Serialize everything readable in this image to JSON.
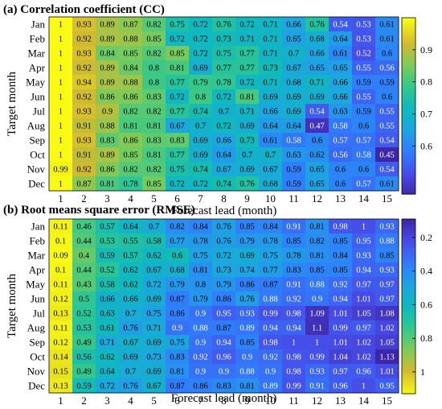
{
  "chart_data": [
    {
      "type": "heatmap",
      "title": "(a) Correlation coefficient (CC)",
      "xlabel": "Forecast lead (month)",
      "ylabel": "Target month",
      "x": [
        "1",
        "2",
        "3",
        "4",
        "5",
        "6",
        "7",
        "8",
        "9",
        "10",
        "11",
        "12",
        "13",
        "14",
        "15"
      ],
      "y": [
        "Jan",
        "Feb",
        "Mar",
        "Apr",
        "May",
        "Jun",
        "Jul",
        "Aug",
        "Sep",
        "Oct",
        "Nov",
        "Dec"
      ],
      "colorscale": "parula_reversed",
      "vmin": 0.45,
      "vmax": 1.0,
      "colorbar_ticks": [
        0.6,
        0.7,
        0.8,
        0.9
      ],
      "values": [
        [
          "1",
          "0.93",
          "0.89",
          "0.87",
          "0.82",
          "0.75",
          "0.72",
          "0.76",
          "0.72",
          "0.71",
          "0.66",
          "0.76",
          "0.54",
          "0.53",
          "0.61"
        ],
        [
          "1",
          "0.92",
          "0.89",
          "0.88",
          "0.85",
          "0.72",
          "0.72",
          "0.73",
          "0.71",
          "0.71",
          "0.65",
          "0.68",
          "0.64",
          "0.53",
          "0.61"
        ],
        [
          "1",
          "0.93",
          "0.84",
          "0.85",
          "0.82",
          "0.85",
          "0.72",
          "0.75",
          "0.77",
          "0.71",
          "0.7",
          "0.66",
          "0.61",
          "0.52",
          "0.6"
        ],
        [
          "1",
          "0.92",
          "0.89",
          "0.84",
          "0.8",
          "0.81",
          "0.69",
          "0.77",
          "0.77",
          "0.73",
          "0.67",
          "0.65",
          "0.65",
          "0.55",
          "0.56"
        ],
        [
          "1",
          "0.94",
          "0.89",
          "0.88",
          "0.8",
          "0.77",
          "0.79",
          "0.78",
          "0.72",
          "0.71",
          "0.68",
          "0.71",
          "0.66",
          "0.59",
          "0.59"
        ],
        [
          "1",
          "0.92",
          "0.86",
          "0.86",
          "0.83",
          "0.72",
          "0.8",
          "0.72",
          "0.81",
          "0.69",
          "0.69",
          "0.69",
          "0.66",
          "0.55",
          "0.6"
        ],
        [
          "1",
          "0.93",
          "0.9",
          "0.82",
          "0.82",
          "0.77",
          "0.74",
          "0.7",
          "0.71",
          "0.66",
          "0.69",
          "0.54",
          "0.63",
          "0.59",
          "0.55"
        ],
        [
          "1",
          "0.91",
          "0.88",
          "0.81",
          "0.81",
          "0.67",
          "0.7",
          "0.72",
          "0.69",
          "0.64",
          "0.64",
          "0.47",
          "0.58",
          "0.6",
          "0.55"
        ],
        [
          "1",
          "0.93",
          "0.83",
          "0.86",
          "0.83",
          "0.83",
          "0.69",
          "0.66",
          "0.73",
          "0.61",
          "0.58",
          "0.6",
          "0.57",
          "0.57",
          "0.54"
        ],
        [
          "1",
          "0.91",
          "0.89",
          "0.85",
          "0.81",
          "0.77",
          "0.69",
          "0.64",
          "0.7",
          "0.7",
          "0.63",
          "0.62",
          "0.56",
          "0.58",
          "0.45"
        ],
        [
          "0.99",
          "0.92",
          "0.86",
          "0.82",
          "0.82",
          "0.75",
          "0.74",
          "0.67",
          "0.69",
          "0.67",
          "0.59",
          "0.65",
          "0.6",
          "0.6",
          "0.54"
        ],
        [
          "1",
          "0.87",
          "0.81",
          "0.78",
          "0.85",
          "0.72",
          "0.72",
          "0.74",
          "0.76",
          "0.68",
          "0.59",
          "0.65",
          "0.6",
          "0.57",
          "0.61"
        ]
      ]
    },
    {
      "type": "heatmap",
      "title": "(b) Root means square error (RMSE)",
      "xlabel": "Forecast lead (month)",
      "ylabel": "Target month",
      "x": [
        "1",
        "2",
        "3",
        "4",
        "5",
        "6",
        "7",
        "8",
        "9",
        "10",
        "11",
        "12",
        "13",
        "14",
        "15"
      ],
      "y": [
        "Jan",
        "Feb",
        "Mar",
        "Apr",
        "May",
        "Jun",
        "Jul",
        "Aug",
        "Sep",
        "Oct",
        "Nov",
        "Dec"
      ],
      "colorscale": "parula_reversed",
      "vmin": 0.09,
      "vmax": 1.13,
      "colorbar_ticks": [
        0.2,
        0.4,
        0.6,
        0.8,
        1
      ],
      "values": [
        [
          "0.11",
          "0.46",
          "0.57",
          "0.64",
          "0.7",
          "0.82",
          "0.84",
          "0.76",
          "0.85",
          "0.84",
          "0.91",
          "0.81",
          "0.98",
          "1",
          "0.93"
        ],
        [
          "0.1",
          "0.44",
          "0.53",
          "0.55",
          "0.58",
          "0.77",
          "0.78",
          "0.76",
          "0.79",
          "0.78",
          "0.85",
          "0.82",
          "0.85",
          "0.95",
          "0.88"
        ],
        [
          "0.09",
          "0.4",
          "0.59",
          "0.57",
          "0.62",
          "0.6",
          "0.75",
          "0.72",
          "0.69",
          "0.75",
          "0.78",
          "0.81",
          "0.84",
          "0.93",
          "0.85"
        ],
        [
          "0.1",
          "0.44",
          "0.52",
          "0.62",
          "0.67",
          "0.68",
          "0.81",
          "0.73",
          "0.74",
          "0.77",
          "0.83",
          "0.85",
          "0.85",
          "0.94",
          "0.93"
        ],
        [
          "0.11",
          "0.43",
          "0.58",
          "0.62",
          "0.72",
          "0.79",
          "0.8",
          "0.79",
          "0.86",
          "0.87",
          "0.91",
          "0.88",
          "0.92",
          "0.97",
          "0.97"
        ],
        [
          "0.12",
          "0.5",
          "0.66",
          "0.66",
          "0.69",
          "0.87",
          "0.79",
          "0.86",
          "0.76",
          "0.88",
          "0.92",
          "0.9",
          "0.94",
          "1.01",
          "0.97"
        ],
        [
          "0.13",
          "0.52",
          "0.63",
          "0.7",
          "0.75",
          "0.86",
          "0.9",
          "0.95",
          "0.93",
          "0.99",
          "0.98",
          "1.09",
          "1.01",
          "1.05",
          "1.08"
        ],
        [
          "0.11",
          "0.53",
          "0.61",
          "0.76",
          "0.71",
          "0.9",
          "0.88",
          "0.87",
          "0.89",
          "0.94",
          "0.94",
          "1.1",
          "0.99",
          "0.97",
          "1.02"
        ],
        [
          "0.12",
          "0.49",
          "0.71",
          "0.67",
          "0.69",
          "0.75",
          "0.9",
          "0.94",
          "0.85",
          "0.98",
          "1",
          "1",
          "1.01",
          "1.02",
          "1.05"
        ],
        [
          "0.14",
          "0.56",
          "0.62",
          "0.69",
          "0.73",
          "0.83",
          "0.92",
          "0.96",
          "0.9",
          "0.92",
          "0.98",
          "0.99",
          "1.04",
          "1.02",
          "1.13"
        ],
        [
          "0.15",
          "0.49",
          "0.64",
          "0.7",
          "0.69",
          "0.81",
          "0.9",
          "0.9",
          "0.88",
          "0.9",
          "0.98",
          "0.93",
          "0.97",
          "0.96",
          "1.01"
        ],
        [
          "0.13",
          "0.59",
          "0.72",
          "0.76",
          "0.67",
          "0.87",
          "0.86",
          "0.83",
          "0.81",
          "0.89",
          "0.99",
          "0.91",
          "0.96",
          "1",
          "0.95"
        ]
      ]
    }
  ]
}
